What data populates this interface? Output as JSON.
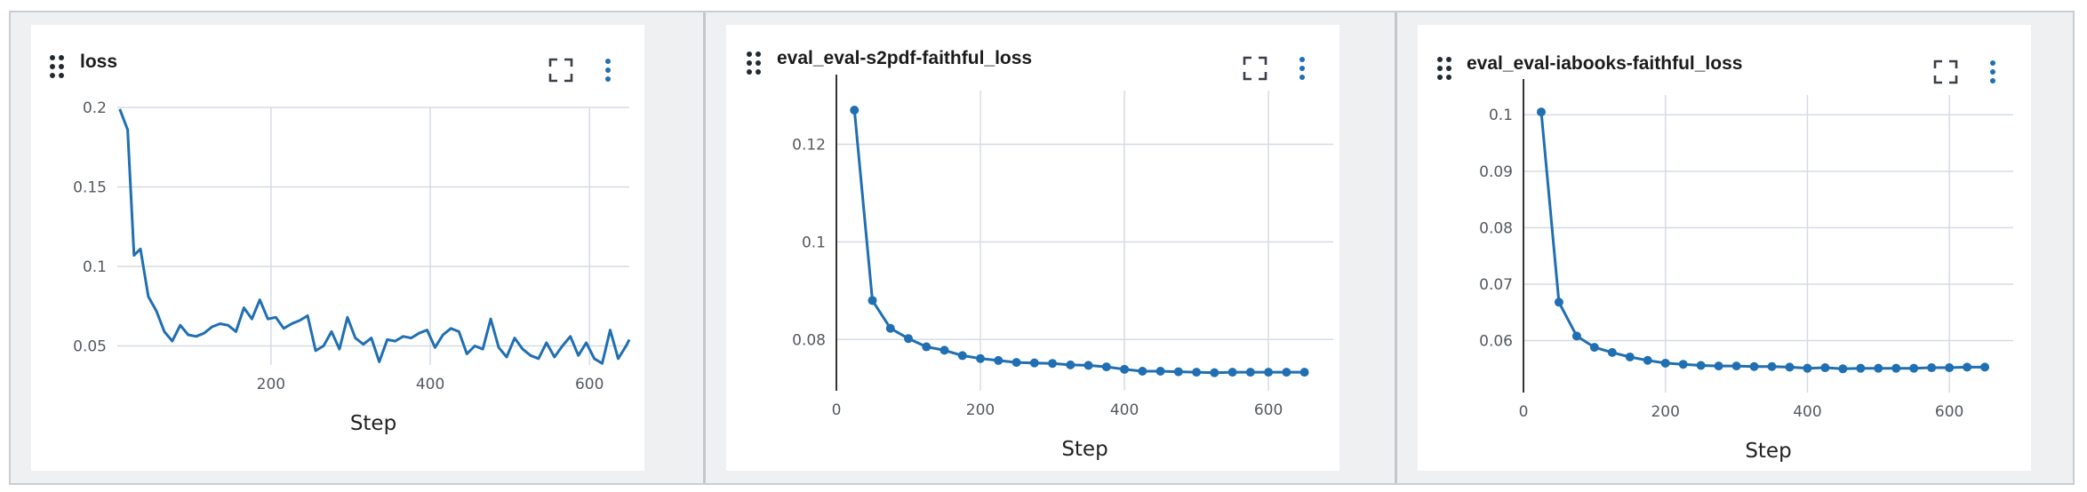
{
  "colors": {
    "line": "#1f6fb2",
    "grid": "#d6dce4",
    "axis": "#333333",
    "tick_text": "#555a60"
  },
  "icons": {
    "drag": "drag-handle-icon",
    "expand": "expand-icon",
    "menu": "more-vertical-icon"
  },
  "panels": [
    {
      "title": "loss",
      "chart_data": {
        "type": "line",
        "title": "loss",
        "xlabel": "Step",
        "ylabel": "",
        "xlim": [
          7,
          650
        ],
        "ylim": [
          0.038,
          0.2
        ],
        "x_ticks": [
          200,
          400,
          600
        ],
        "y_ticks": [
          0.05,
          0.1,
          0.15,
          0.2
        ],
        "y_tick_labels": [
          "0.05",
          "0.1",
          "0.15",
          "0.2"
        ],
        "grid": true,
        "markers": false,
        "series": [
          {
            "x": [
              10,
              20,
              28,
              36,
              46,
              56,
              66,
              76,
              86,
              96,
              106,
              116,
              126,
              136,
              146,
              156,
              166,
              176,
              186,
              196,
              206,
              216,
              226,
              236,
              246,
              256,
              266,
              276,
              286,
              296,
              306,
              316,
              326,
              336,
              346,
              356,
              366,
              376,
              386,
              396,
              406,
              416,
              426,
              436,
              446,
              456,
              466,
              476,
              486,
              496,
              506,
              516,
              526,
              536,
              546,
              556,
              566,
              576,
              586,
              596,
              606,
              616,
              626,
              636,
              646,
              650
            ],
            "y": [
              0.199,
              0.186,
              0.107,
              0.111,
              0.081,
              0.072,
              0.059,
              0.053,
              0.063,
              0.057,
              0.056,
              0.058,
              0.062,
              0.064,
              0.063,
              0.059,
              0.074,
              0.067,
              0.079,
              0.067,
              0.068,
              0.061,
              0.064,
              0.066,
              0.069,
              0.047,
              0.05,
              0.059,
              0.048,
              0.068,
              0.055,
              0.051,
              0.055,
              0.04,
              0.054,
              0.053,
              0.056,
              0.055,
              0.058,
              0.06,
              0.049,
              0.057,
              0.061,
              0.059,
              0.045,
              0.05,
              0.048,
              0.067,
              0.049,
              0.043,
              0.055,
              0.048,
              0.044,
              0.042,
              0.052,
              0.043,
              0.05,
              0.056,
              0.044,
              0.052,
              0.042,
              0.039,
              0.06,
              0.042,
              0.05,
              0.054
            ]
          }
        ]
      }
    },
    {
      "title": "eval_eval-s2pdf-faithful_loss",
      "chart_data": {
        "type": "line",
        "title": "eval_eval-s2pdf-faithful_loss",
        "xlabel": "Step",
        "ylabel": "",
        "xlim": [
          0,
          690
        ],
        "ylim": [
          0.0695,
          0.131
        ],
        "x_ticks": [
          0,
          200,
          400,
          600
        ],
        "y_ticks": [
          0.08,
          0.1,
          0.12
        ],
        "y_tick_labels": [
          "0.08",
          "0.1",
          "0.12"
        ],
        "grid": true,
        "markers": true,
        "series": [
          {
            "x": [
              25,
              50,
              75,
              100,
              125,
              150,
              175,
              200,
              225,
              250,
              275,
              300,
              325,
              350,
              375,
              400,
              425,
              450,
              475,
              500,
              525,
              550,
              575,
              600,
              625,
              650
            ],
            "y": [
              0.127,
              0.088,
              0.0823,
              0.0802,
              0.0785,
              0.0778,
              0.0767,
              0.0761,
              0.0757,
              0.0753,
              0.0752,
              0.0751,
              0.0748,
              0.0747,
              0.0744,
              0.0739,
              0.0735,
              0.0735,
              0.0734,
              0.0733,
              0.0732,
              0.0733,
              0.0733,
              0.0733,
              0.0733,
              0.0733
            ]
          }
        ]
      }
    },
    {
      "title": "eval_eval-iabooks-faithful_loss",
      "chart_data": {
        "type": "line",
        "title": "eval_eval-iabooks-faithful_loss",
        "xlabel": "Step",
        "ylabel": "",
        "xlim": [
          0,
          690
        ],
        "ylim": [
          0.0508,
          0.1035
        ],
        "x_ticks": [
          0,
          200,
          400,
          600
        ],
        "y_ticks": [
          0.06,
          0.07,
          0.08,
          0.09,
          0.1
        ],
        "y_tick_labels": [
          "0.06",
          "0.07",
          "0.08",
          "0.09",
          "0.1"
        ],
        "grid": true,
        "markers": true,
        "series": [
          {
            "x": [
              25,
              50,
              75,
              100,
              125,
              150,
              175,
              200,
              225,
              250,
              275,
              300,
              325,
              350,
              375,
              400,
              425,
              450,
              475,
              500,
              525,
              550,
              575,
              600,
              625,
              650
            ],
            "y": [
              0.1005,
              0.0668,
              0.0608,
              0.0588,
              0.0579,
              0.0571,
              0.0565,
              0.056,
              0.0558,
              0.0556,
              0.0555,
              0.0555,
              0.0554,
              0.0554,
              0.0553,
              0.0551,
              0.0552,
              0.055,
              0.0551,
              0.0551,
              0.0551,
              0.0551,
              0.0552,
              0.0552,
              0.0553,
              0.0553
            ]
          }
        ]
      }
    }
  ]
}
